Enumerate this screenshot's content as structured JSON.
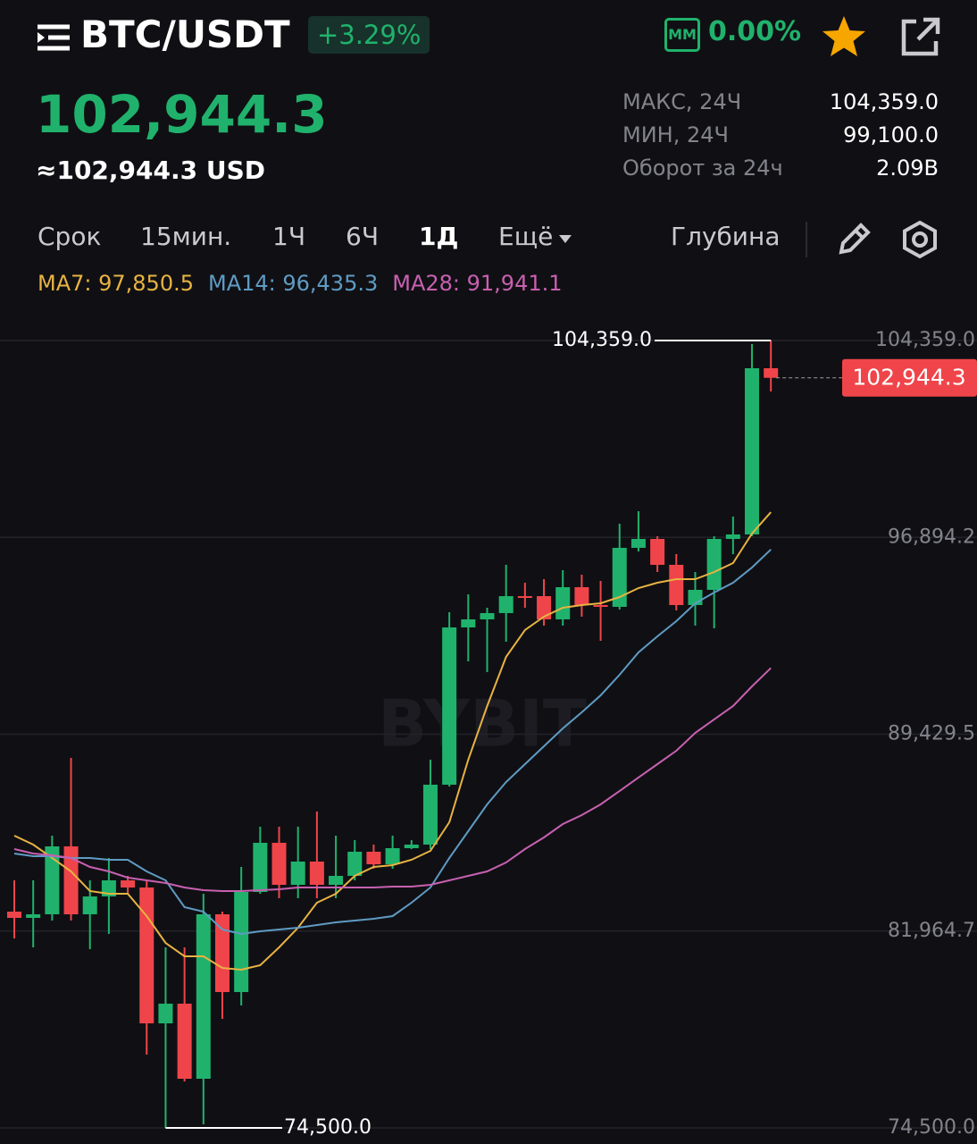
{
  "header": {
    "pair": "BTC/USDT",
    "change": "+3.29%",
    "mm_badge": "ММ",
    "mm_value": "0.00%"
  },
  "price": {
    "last": "102,944.3",
    "usd": "≈102,944.3 USD"
  },
  "stats": [
    {
      "label": "МАКС, 24Ч",
      "value": "104,359.0"
    },
    {
      "label": "МИН, 24Ч",
      "value": "99,100.0"
    },
    {
      "label": "Оборот за 24ч",
      "value": "2.09B"
    }
  ],
  "tabs": [
    "Срок",
    "15мин.",
    "1Ч",
    "6Ч",
    "1Д",
    "Ещё"
  ],
  "depth": "Глубина",
  "chart_data": {
    "type": "candlestick",
    "watermark": "BYBIT",
    "up_color": "#20b26c",
    "down_color": "#ef454a",
    "ylim": [
      73892,
      106087
    ],
    "yticks": [
      {
        "value": 74500,
        "label": "74,500.0"
      },
      {
        "value": 81964.7,
        "label": "81,964.7"
      },
      {
        "value": 89429.5,
        "label": "89,429.5"
      },
      {
        "value": 96894.2,
        "label": "96,894.2"
      },
      {
        "value": 104359,
        "label": "104,359.0"
      }
    ],
    "grid": true,
    "open": [
      82703,
      82466,
      82602,
      85177,
      82602,
      83279,
      83889,
      83618,
      78467,
      79213,
      76366,
      82602,
      79653,
      83449,
      85313,
      83720,
      84601,
      83720,
      84059,
      84974,
      84499,
      85109,
      85245,
      87516,
      93480,
      93785,
      94023,
      94666,
      94666,
      93785,
      95005,
      94328,
      94260,
      96497,
      96835,
      95853,
      94328,
      94904,
      96835,
      97005,
      103308
    ],
    "high": [
      83889,
      83889,
      85584,
      88532,
      83889,
      84737,
      84059,
      83889,
      81348,
      81348,
      83381,
      82703,
      84398,
      85923,
      85923,
      85923,
      86499,
      85584,
      85414,
      85245,
      85584,
      85414,
      88465,
      94056,
      94734,
      94226,
      95853,
      95175,
      95310,
      95649,
      95480,
      95243,
      97412,
      97886,
      96937,
      96259,
      95581,
      96937,
      97683,
      104223,
      104359
    ],
    "low": [
      81687,
      81348,
      82364,
      82364,
      81280,
      81856,
      83381,
      77281,
      74500,
      76264,
      74637,
      78636,
      79145,
      83381,
      83212,
      83212,
      83212,
      83212,
      83889,
      84330,
      84330,
      85076,
      85076,
      87448,
      92192,
      91786,
      92938,
      94226,
      93548,
      93548,
      93887,
      92972,
      94158,
      96361,
      95581,
      94124,
      93548,
      93446,
      96259,
      96937,
      102427
    ],
    "close": [
      82466,
      82602,
      85177,
      82602,
      83279,
      83889,
      83618,
      78467,
      79213,
      76366,
      82602,
      79653,
      83449,
      85313,
      83720,
      84601,
      83720,
      84059,
      84974,
      84499,
      85109,
      85245,
      87516,
      93480,
      93785,
      94023,
      94666,
      94600,
      93785,
      95005,
      94328,
      94260,
      96497,
      96835,
      95853,
      94328,
      94904,
      96835,
      97005,
      103308,
      102944.3
    ],
    "series": [
      {
        "name": "MA7: 97,850.5",
        "color": "#e8b342",
        "values": [
          85584,
          85245,
          84737,
          84228,
          83483,
          83381,
          83381,
          82534,
          81517,
          81009,
          81009,
          80568,
          80500,
          80670,
          81348,
          82093,
          83042,
          83381,
          84059,
          84398,
          84465,
          84669,
          85008,
          86092,
          88464,
          90498,
          92362,
          93379,
          93887,
          94226,
          94327,
          94395,
          94632,
          94971,
          95175,
          95310,
          95310,
          95581,
          95920,
          97039,
          97850.5
        ]
      },
      {
        "name": "MA14: 96,435.3",
        "color": "#5f9bc4",
        "values": [
          84906,
          84804,
          84804,
          84737,
          84737,
          84669,
          84669,
          84228,
          83889,
          82873,
          82703,
          82025,
          81856,
          81958,
          82025,
          82093,
          82195,
          82297,
          82364,
          82432,
          82534,
          83042,
          83618,
          84737,
          85753,
          86770,
          87617,
          88295,
          88973,
          89651,
          90261,
          90905,
          91684,
          92531,
          93141,
          93717,
          94395,
          94802,
          95175,
          95751,
          96435.3
        ]
      },
      {
        "name": "MA28: 91,941.1",
        "color": "#c860b0",
        "values": [
          85075,
          84906,
          84838,
          84737,
          84398,
          84228,
          83991,
          83889,
          83788,
          83618,
          83517,
          83483,
          83483,
          83517,
          83550,
          83618,
          83618,
          83618,
          83618,
          83618,
          83652,
          83652,
          83720,
          83889,
          84059,
          84228,
          84567,
          85075,
          85516,
          86024,
          86363,
          86770,
          87278,
          87787,
          88295,
          88803,
          89481,
          89990,
          90498,
          91243,
          91941.1
        ]
      }
    ],
    "high_marker": {
      "value": 104359,
      "label": "104,359.0"
    },
    "low_marker": {
      "value": 74500,
      "label": "74,500.0"
    },
    "price_tag": {
      "value": 102944.3,
      "label": "102,944.3"
    }
  }
}
